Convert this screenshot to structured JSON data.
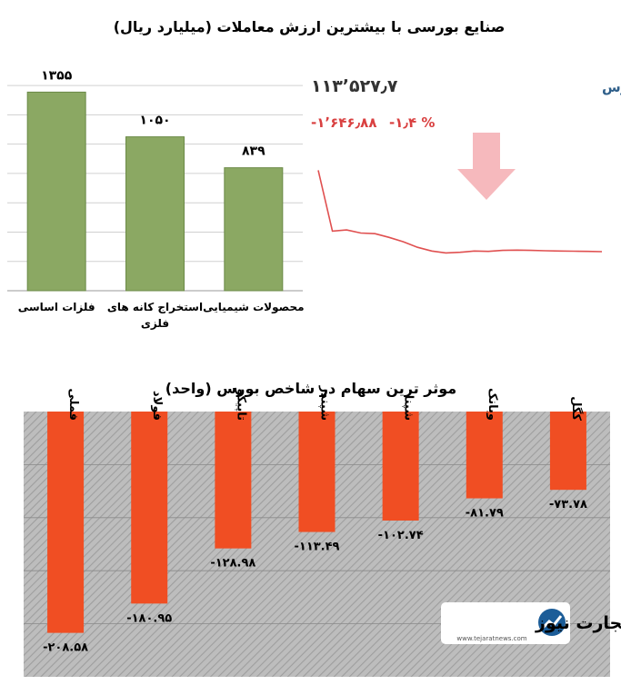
{
  "chart_data": [
    {
      "type": "bar",
      "title": "صنایع بورسی با بیشترین ارزش معاملات  (میلیارد ریال)",
      "categories": [
        "فلزات اساسی",
        "استخراج کانه های فلزی",
        "محصولات شیمیایی"
      ],
      "category_lines": [
        [
          "فلزات اساسی"
        ],
        [
          "استخراج کانه های",
          "فلزی"
        ],
        [
          "محصولات شیمیایی"
        ]
      ],
      "values": [
        1355,
        1050,
        839
      ],
      "value_labels": [
        "۱۳۵۵",
        "۱۰۵۰",
        "۸۳۹"
      ],
      "ylim": [
        0,
        1500
      ],
      "grid": true,
      "color": "#8ba863"
    },
    {
      "type": "line",
      "title": "کل بورس",
      "index_value": "۱۱۳٬۵۲۷٫۷",
      "change_value": "-۱٬۶۴۶٫۸۸",
      "change_percent": "-۱٫۴ %",
      "x": [
        0,
        1,
        2,
        3,
        4,
        5,
        6,
        7,
        8,
        9,
        10,
        11,
        12,
        13,
        14,
        15,
        16,
        17,
        18,
        19,
        20
      ],
      "y": [
        114800,
        113820,
        113840,
        113790,
        113780,
        113720,
        113650,
        113560,
        113500,
        113470,
        113480,
        113500,
        113495,
        113510,
        113515,
        113510,
        113505,
        113500,
        113498,
        113495,
        113490
      ],
      "ylim": [
        113300,
        115200
      ],
      "color": "#e05050",
      "trend": "down"
    },
    {
      "type": "bar",
      "title": "موثر ترین سهام در شاخص بورس (واحد)",
      "categories": [
        "فملی",
        "فولاد",
        "تاپیکو",
        "شپندر",
        "شپنا",
        "وبانک",
        "کگل"
      ],
      "values": [
        -208.58,
        -180.95,
        -128.98,
        -113.49,
        -102.74,
        -81.79,
        -73.78
      ],
      "value_labels": [
        "-۲۰۸.۵۸",
        "-۱۸۰.۹۵",
        "-۱۲۸.۹۸",
        "-۱۱۳.۴۹",
        "-۱۰۲.۷۴",
        "-۸۱.۷۹",
        "-۷۳.۷۸"
      ],
      "ylim": [
        -250,
        0
      ],
      "color": "#f04e23"
    }
  ],
  "logo": {
    "name": "تجارت نیوز",
    "url": "www.tejaratnews.com"
  }
}
